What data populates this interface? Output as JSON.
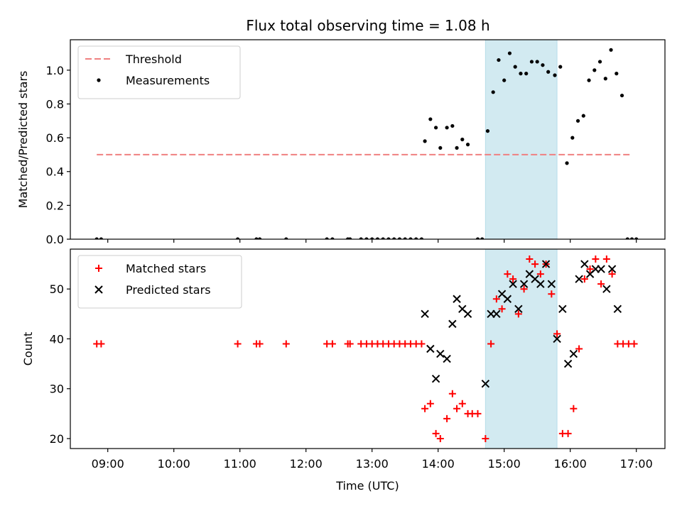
{
  "figure": {
    "title": "Flux total observing time = 1.08 h"
  },
  "chart_data": [
    {
      "type": "scatter",
      "ylabel": "Matched/Predicted stars",
      "xlabel": "",
      "xlim": [
        "08:26",
        "17:26"
      ],
      "ylim": [
        0,
        1.18
      ],
      "yticks": [
        0.0,
        0.2,
        0.4,
        0.6,
        0.8,
        1.0
      ],
      "ytick_labels": [
        "0.0",
        "0.2",
        "0.4",
        "0.6",
        "0.8",
        "1.0"
      ],
      "xtick_labels_visible": false,
      "legend_position": "upper-left",
      "shaded_interval": {
        "x0": "14:43",
        "x1": "15:48",
        "color": "#add8e6"
      },
      "threshold": {
        "name": "Threshold",
        "value": 0.5,
        "x0": "08:50",
        "x1": "16:56",
        "color": "#f08080",
        "style": "dashed"
      },
      "series": [
        {
          "name": "Measurements",
          "marker": "dot",
          "color": "#000000",
          "points": [
            [
              "08:50",
              0.0
            ],
            [
              "08:54",
              0.0
            ],
            [
              "10:58",
              0.0
            ],
            [
              "11:15",
              0.0
            ],
            [
              "11:18",
              0.0
            ],
            [
              "11:42",
              0.0
            ],
            [
              "12:19",
              0.0
            ],
            [
              "12:24",
              0.0
            ],
            [
              "12:38",
              0.0
            ],
            [
              "12:40",
              0.0
            ],
            [
              "12:50",
              0.0
            ],
            [
              "12:55",
              0.0
            ],
            [
              "13:00",
              0.0
            ],
            [
              "13:05",
              0.0
            ],
            [
              "13:10",
              0.0
            ],
            [
              "13:15",
              0.0
            ],
            [
              "13:20",
              0.0
            ],
            [
              "13:25",
              0.0
            ],
            [
              "13:30",
              0.0
            ],
            [
              "13:35",
              0.0
            ],
            [
              "13:40",
              0.0
            ],
            [
              "13:45",
              0.0
            ],
            [
              "13:48",
              0.58
            ],
            [
              "13:53",
              0.71
            ],
            [
              "13:58",
              0.66
            ],
            [
              "14:02",
              0.54
            ],
            [
              "14:08",
              0.66
            ],
            [
              "14:13",
              0.67
            ],
            [
              "14:17",
              0.54
            ],
            [
              "14:22",
              0.59
            ],
            [
              "14:27",
              0.56
            ],
            [
              "14:36",
              0.0
            ],
            [
              "14:40",
              0.0
            ],
            [
              "14:45",
              0.64
            ],
            [
              "14:50",
              0.87
            ],
            [
              "14:55",
              1.06
            ],
            [
              "15:00",
              0.94
            ],
            [
              "15:05",
              1.1
            ],
            [
              "15:10",
              1.02
            ],
            [
              "15:15",
              0.98
            ],
            [
              "15:20",
              0.98
            ],
            [
              "15:25",
              1.05
            ],
            [
              "15:30",
              1.05
            ],
            [
              "15:35",
              1.03
            ],
            [
              "15:40",
              0.99
            ],
            [
              "15:46",
              0.97
            ],
            [
              "15:51",
              1.02
            ],
            [
              "15:57",
              0.45
            ],
            [
              "16:02",
              0.6
            ],
            [
              "16:07",
              0.7
            ],
            [
              "16:12",
              0.73
            ],
            [
              "16:17",
              0.94
            ],
            [
              "16:22",
              1.0
            ],
            [
              "16:27",
              1.05
            ],
            [
              "16:32",
              0.95
            ],
            [
              "16:37",
              1.12
            ],
            [
              "16:42",
              0.98
            ],
            [
              "16:47",
              0.85
            ],
            [
              "16:52",
              0.0
            ],
            [
              "16:56",
              0.0
            ],
            [
              "17:00",
              0.0
            ]
          ]
        }
      ]
    },
    {
      "type": "scatter",
      "ylabel": "Count",
      "xlabel": "Time (UTC)",
      "xlim": [
        "08:26",
        "17:26"
      ],
      "ylim": [
        18,
        58
      ],
      "yticks": [
        20,
        30,
        40,
        50
      ],
      "ytick_labels": [
        "20",
        "30",
        "40",
        "50"
      ],
      "xticks": [
        "09:00",
        "10:00",
        "11:00",
        "12:00",
        "13:00",
        "14:00",
        "15:00",
        "16:00",
        "17:00"
      ],
      "xtick_labels": [
        "09:00",
        "10:00",
        "11:00",
        "12:00",
        "13:00",
        "14:00",
        "15:00",
        "16:00",
        "17:00"
      ],
      "legend_position": "upper-left",
      "shaded_interval": {
        "x0": "14:43",
        "x1": "15:48",
        "color": "#add8e6"
      },
      "series": [
        {
          "name": "Matched stars",
          "marker": "plus",
          "color": "#ff0000",
          "points": [
            [
              "08:50",
              39
            ],
            [
              "08:54",
              39
            ],
            [
              "10:58",
              39
            ],
            [
              "11:15",
              39
            ],
            [
              "11:18",
              39
            ],
            [
              "11:42",
              39
            ],
            [
              "12:19",
              39
            ],
            [
              "12:24",
              39
            ],
            [
              "12:38",
              39
            ],
            [
              "12:40",
              39
            ],
            [
              "12:50",
              39
            ],
            [
              "12:55",
              39
            ],
            [
              "13:00",
              39
            ],
            [
              "13:05",
              39
            ],
            [
              "13:10",
              39
            ],
            [
              "13:15",
              39
            ],
            [
              "13:20",
              39
            ],
            [
              "13:25",
              39
            ],
            [
              "13:30",
              39
            ],
            [
              "13:35",
              39
            ],
            [
              "13:40",
              39
            ],
            [
              "13:45",
              39
            ],
            [
              "13:48",
              26
            ],
            [
              "13:53",
              27
            ],
            [
              "13:58",
              21
            ],
            [
              "14:02",
              20
            ],
            [
              "14:08",
              24
            ],
            [
              "14:13",
              29
            ],
            [
              "14:17",
              26
            ],
            [
              "14:22",
              27
            ],
            [
              "14:27",
              25
            ],
            [
              "14:31",
              25
            ],
            [
              "14:36",
              25
            ],
            [
              "14:43",
              20
            ],
            [
              "14:48",
              39
            ],
            [
              "14:53",
              48
            ],
            [
              "14:58",
              46
            ],
            [
              "15:03",
              53
            ],
            [
              "15:08",
              52
            ],
            [
              "15:13",
              45
            ],
            [
              "15:18",
              50
            ],
            [
              "15:23",
              56
            ],
            [
              "15:28",
              55
            ],
            [
              "15:33",
              53
            ],
            [
              "15:38",
              55
            ],
            [
              "15:43",
              49
            ],
            [
              "15:48",
              41
            ],
            [
              "15:53",
              21
            ],
            [
              "15:58",
              21
            ],
            [
              "16:03",
              26
            ],
            [
              "16:08",
              38
            ],
            [
              "16:13",
              52
            ],
            [
              "16:18",
              54
            ],
            [
              "16:23",
              56
            ],
            [
              "16:28",
              51
            ],
            [
              "16:33",
              56
            ],
            [
              "16:38",
              53
            ],
            [
              "16:43",
              39
            ],
            [
              "16:48",
              39
            ],
            [
              "16:53",
              39
            ],
            [
              "16:58",
              39
            ]
          ]
        },
        {
          "name": "Predicted stars",
          "marker": "x",
          "color": "#000000",
          "points": [
            [
              "13:48",
              45
            ],
            [
              "13:53",
              38
            ],
            [
              "13:58",
              32
            ],
            [
              "14:02",
              37
            ],
            [
              "14:08",
              36
            ],
            [
              "14:13",
              43
            ],
            [
              "14:17",
              48
            ],
            [
              "14:22",
              46
            ],
            [
              "14:27",
              45
            ],
            [
              "14:43",
              31
            ],
            [
              "14:48",
              45
            ],
            [
              "14:53",
              45
            ],
            [
              "14:58",
              49
            ],
            [
              "15:03",
              48
            ],
            [
              "15:08",
              51
            ],
            [
              "15:13",
              46
            ],
            [
              "15:18",
              51
            ],
            [
              "15:23",
              53
            ],
            [
              "15:28",
              52
            ],
            [
              "15:33",
              51
            ],
            [
              "15:38",
              55
            ],
            [
              "15:43",
              51
            ],
            [
              "15:48",
              40
            ],
            [
              "15:53",
              46
            ],
            [
              "15:58",
              35
            ],
            [
              "16:03",
              37
            ],
            [
              "16:08",
              52
            ],
            [
              "16:13",
              55
            ],
            [
              "16:18",
              53
            ],
            [
              "16:23",
              54
            ],
            [
              "16:28",
              54
            ],
            [
              "16:33",
              50
            ],
            [
              "16:38",
              54
            ],
            [
              "16:43",
              46
            ]
          ]
        }
      ]
    }
  ]
}
